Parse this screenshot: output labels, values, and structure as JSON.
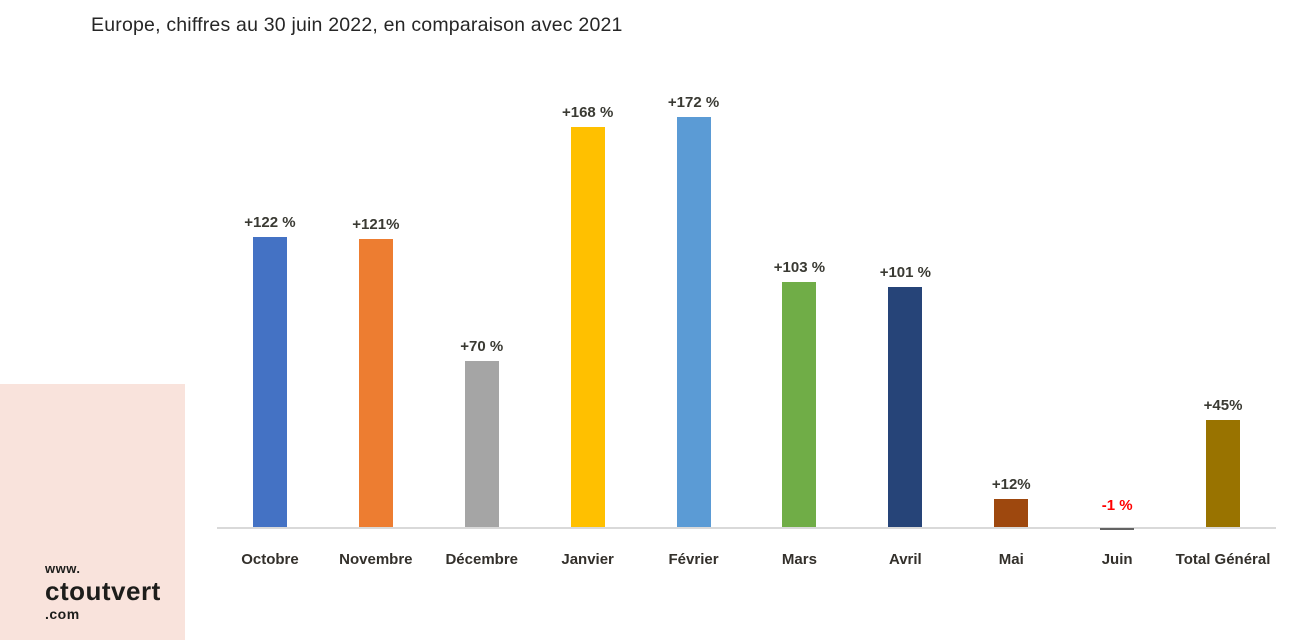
{
  "title": "Europe, chiffres au 30 juin 2022, en comparaison avec 2021",
  "logo": {
    "www": "www.",
    "name": "ctoutvert",
    "tld": ".com"
  },
  "colors": {
    "background": "#FFFFFF",
    "accent_block": "#F9E3DC",
    "axis": "#D9D9D9",
    "title_text": "#262626",
    "label_text": "#3A3A33",
    "negative_label": "#FF0000"
  },
  "chart_data": {
    "type": "bar",
    "title": "Europe, chiffres au 30 juin 2022, en comparaison avec 2021",
    "categories": [
      "Octobre",
      "Novembre",
      "Décembre",
      "Janvier",
      "Février",
      "Mars",
      "Avril",
      "Mai",
      "Juin",
      "Total Général"
    ],
    "values": [
      122,
      121,
      70,
      168,
      172,
      103,
      101,
      12,
      -1,
      45
    ],
    "data_labels": [
      "+122 %",
      "+121%",
      "+70 %",
      "+168 %",
      "+172 %",
      "+103 %",
      "+101 %",
      "+12%",
      "-1 %",
      "+45%"
    ],
    "bar_colors": [
      "#4472C4",
      "#ED7D31",
      "#A5A5A5",
      "#FFC000",
      "#5B9BD5",
      "#70AD47",
      "#264478",
      "#9E480E",
      "#636363",
      "#997300"
    ],
    "xlabel": "",
    "ylabel": "",
    "ylim": [
      -5,
      190
    ],
    "grid": false,
    "legend": false,
    "orientation": "vertical"
  }
}
